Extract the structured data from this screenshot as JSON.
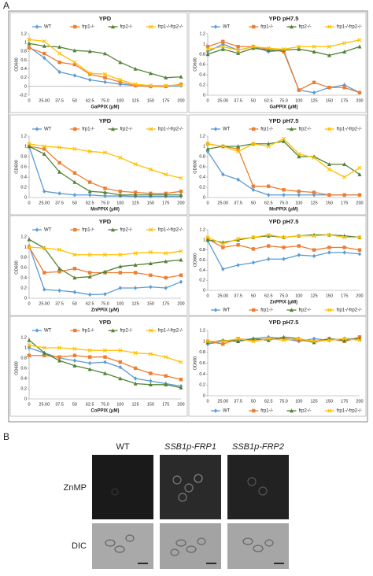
{
  "panel_a_label": "A",
  "chart_data": [
    {
      "type": "line",
      "title": "YPD",
      "xlabel": "GaPPIX (μM)",
      "ylabel": "OD600",
      "legend": "top",
      "categories": [
        "0",
        "25.00",
        "37.5",
        "50",
        "62.5",
        "75.0",
        "100",
        "125",
        "150",
        "175",
        "200"
      ],
      "ylim": [
        -0.2,
        1.2
      ],
      "yticks": [
        -0.2,
        0,
        0.2,
        0.4,
        0.6,
        0.8,
        1,
        1.2
      ],
      "series": [
        {
          "name": "WT",
          "color": "#5b9bd5",
          "marker": "diamond",
          "values": [
            0.9,
            0.65,
            0.33,
            0.25,
            0.15,
            0.1,
            0.05,
            0.02,
            0,
            0,
            0.02
          ]
        },
        {
          "name": "frp1-/-",
          "color": "#ed7d31",
          "marker": "square",
          "values": [
            0.88,
            0.75,
            0.55,
            0.5,
            0.28,
            0.2,
            0.1,
            0.02,
            0,
            0,
            0.05
          ]
        },
        {
          "name": "frp2-/-",
          "color": "#548235",
          "marker": "triangle",
          "values": [
            0.98,
            0.92,
            0.9,
            0.82,
            0.8,
            0.75,
            0.55,
            0.4,
            0.3,
            0.2,
            0.22
          ]
        },
        {
          "name": "frp1-/-frp2-/-",
          "color": "#ffc000",
          "marker": "x",
          "values": [
            1.07,
            1.03,
            0.75,
            0.55,
            0.3,
            0.28,
            0.15,
            0.05,
            0.02,
            0.02,
            0.03
          ]
        }
      ]
    },
    {
      "type": "line",
      "title": "YPD pH7.5",
      "xlabel": "GaPPIX (μM)",
      "ylabel": "OD600",
      "legend": "top",
      "categories": [
        "0",
        "25.00",
        "37.5",
        "50",
        "62.5",
        "75.0",
        "100",
        "125",
        "150",
        "175",
        "200"
      ],
      "ylim": [
        0,
        1.2
      ],
      "yticks": [
        0,
        0.2,
        0.4,
        0.6,
        0.8,
        1,
        1.2
      ],
      "series": [
        {
          "name": "WT",
          "color": "#5b9bd5",
          "marker": "diamond",
          "values": [
            0.85,
            1.0,
            0.88,
            0.95,
            0.85,
            0.88,
            0.1,
            0.05,
            0.15,
            0.2,
            0.05
          ]
        },
        {
          "name": "frp1-/-",
          "color": "#ed7d31",
          "marker": "square",
          "values": [
            0.95,
            1.05,
            0.95,
            0.95,
            0.9,
            0.85,
            0.1,
            0.25,
            0.15,
            0.15,
            0.05
          ]
        },
        {
          "name": "frp2-/-",
          "color": "#548235",
          "marker": "triangle",
          "values": [
            0.8,
            0.9,
            0.82,
            0.92,
            0.88,
            0.88,
            0.9,
            0.85,
            0.78,
            0.85,
            0.95
          ]
        },
        {
          "name": "frp1-/-frp2-/-",
          "color": "#ffc000",
          "marker": "x",
          "values": [
            0.9,
            0.95,
            0.88,
            0.95,
            0.92,
            0.9,
            0.95,
            0.95,
            0.95,
            1.02,
            1.08
          ]
        }
      ]
    },
    {
      "type": "line",
      "title": "YPD",
      "xlabel": "MnPPIX (μM)",
      "ylabel": "OD600",
      "legend": "top",
      "categories": [
        "0",
        "25.00",
        "37.5",
        "50",
        "62.5",
        "75.0",
        "100",
        "125",
        "150",
        "175",
        "200"
      ],
      "ylim": [
        0,
        1.2
      ],
      "yticks": [
        0,
        0.2,
        0.4,
        0.6,
        0.8,
        1,
        1.2
      ],
      "series": [
        {
          "name": "WT",
          "color": "#5b9bd5",
          "marker": "diamond",
          "values": [
            1.0,
            0.12,
            0.08,
            0.05,
            0.05,
            0.03,
            0.03,
            0.02,
            0.02,
            0.02,
            0.02
          ]
        },
        {
          "name": "frp1-/-",
          "color": "#ed7d31",
          "marker": "square",
          "values": [
            1.0,
            0.95,
            0.68,
            0.48,
            0.3,
            0.18,
            0.12,
            0.1,
            0.08,
            0.08,
            0.12
          ]
        },
        {
          "name": "frp2-/-",
          "color": "#548235",
          "marker": "triangle",
          "values": [
            1.0,
            0.85,
            0.5,
            0.3,
            0.12,
            0.1,
            0.05,
            0.05,
            0.05,
            0.05,
            0.05
          ]
        },
        {
          "name": "frp1-/-frp2-/-",
          "color": "#ffc000",
          "marker": "x",
          "values": [
            1.05,
            1.0,
            0.98,
            0.95,
            0.9,
            0.88,
            0.78,
            0.65,
            0.55,
            0.45,
            0.38
          ]
        }
      ]
    },
    {
      "type": "line",
      "title": "YPD pH7.5",
      "xlabel": "MnPPIX (μM)",
      "ylabel": "OD600",
      "legend": "top",
      "categories": [
        "0",
        "25.00",
        "37.5",
        "50",
        "62.5",
        "75.0",
        "100",
        "125",
        "150",
        "175",
        "200"
      ],
      "ylim": [
        0,
        1.2
      ],
      "yticks": [
        0,
        0.2,
        0.4,
        0.6,
        0.8,
        1,
        1.2
      ],
      "series": [
        {
          "name": "WT",
          "color": "#5b9bd5",
          "marker": "diamond",
          "values": [
            0.9,
            0.45,
            0.35,
            0.15,
            0.05,
            0.05,
            0.05,
            0.05,
            0.05,
            0.05,
            0.05
          ]
        },
        {
          "name": "frp1-/-",
          "color": "#ed7d31",
          "marker": "square",
          "values": [
            1.05,
            1.0,
            0.95,
            0.22,
            0.22,
            0.15,
            0.12,
            0.1,
            0.05,
            0.05,
            0.05
          ]
        },
        {
          "name": "frp2-/-",
          "color": "#548235",
          "marker": "triangle",
          "values": [
            0.95,
            1.0,
            1.0,
            1.05,
            1.05,
            1.1,
            0.8,
            0.8,
            0.65,
            0.65,
            0.45
          ]
        },
        {
          "name": "frp1-/-frp2-/-",
          "color": "#ffc000",
          "marker": "x",
          "values": [
            1.05,
            1.0,
            0.9,
            1.05,
            1.0,
            1.15,
            0.85,
            0.78,
            0.55,
            0.4,
            0.58
          ]
        }
      ]
    },
    {
      "type": "line",
      "title": "YPD",
      "xlabel": "ZnPPIX (μM)",
      "ylabel": "OD600",
      "legend": "top",
      "categories": [
        "0",
        "25.00",
        "37.5",
        "50",
        "62.5",
        "75.0",
        "100",
        "125",
        "150",
        "175",
        "200"
      ],
      "ylim": [
        0,
        1.2
      ],
      "yticks": [
        0,
        0.2,
        0.4,
        0.6,
        0.8,
        1,
        1.2
      ],
      "series": [
        {
          "name": "WT",
          "color": "#5b9bd5",
          "marker": "diamond",
          "values": [
            1.02,
            0.17,
            0.15,
            0.12,
            0.07,
            0.08,
            0.2,
            0.2,
            0.22,
            0.2,
            0.32
          ]
        },
        {
          "name": "frp1-/-",
          "color": "#ed7d31",
          "marker": "square",
          "values": [
            1.0,
            0.5,
            0.52,
            0.58,
            0.5,
            0.5,
            0.5,
            0.5,
            0.45,
            0.4,
            0.45
          ]
        },
        {
          "name": "frp2-/-",
          "color": "#548235",
          "marker": "triangle",
          "values": [
            1.15,
            0.98,
            0.58,
            0.4,
            0.42,
            0.52,
            0.62,
            0.65,
            0.68,
            0.72,
            0.75
          ]
        },
        {
          "name": "frp1-/-frp2-/-",
          "color": "#ffc000",
          "marker": "x",
          "values": [
            1.0,
            0.98,
            0.95,
            0.85,
            0.85,
            0.85,
            0.85,
            0.88,
            0.9,
            0.88,
            0.92
          ]
        }
      ]
    },
    {
      "type": "line",
      "title": "YPD pH7.5",
      "xlabel": "ZnPPIX (μM)",
      "ylabel": "OD600",
      "legend": "bottom",
      "categories": [
        "0",
        "25.00",
        "37.5",
        "50",
        "62.5",
        "75.0",
        "100",
        "125",
        "150",
        "175",
        "200"
      ],
      "ylim": [
        0,
        1.2
      ],
      "yticks": [
        0,
        0.2,
        0.4,
        0.6,
        0.8,
        1,
        1.2
      ],
      "series": [
        {
          "name": "WT",
          "color": "#5b9bd5",
          "marker": "diamond",
          "values": [
            0.98,
            0.42,
            0.5,
            0.55,
            0.62,
            0.62,
            0.7,
            0.68,
            0.75,
            0.75,
            0.72
          ]
        },
        {
          "name": "frp1-/-",
          "color": "#ed7d31",
          "marker": "square",
          "values": [
            1.02,
            0.85,
            0.9,
            0.82,
            0.88,
            0.85,
            0.88,
            0.8,
            0.85,
            0.85,
            0.8
          ]
        },
        {
          "name": "frp2-/-",
          "color": "#548235",
          "marker": "triangle",
          "values": [
            1.0,
            0.95,
            1.0,
            1.05,
            1.08,
            1.05,
            1.08,
            1.1,
            1.1,
            1.08,
            1.05
          ]
        },
        {
          "name": "frp1-/-frp2-/-",
          "color": "#ffc000",
          "marker": "x",
          "values": [
            1.05,
            0.92,
            1.02,
            1.05,
            1.1,
            1.05,
            1.08,
            1.08,
            1.1,
            1.05,
            1.05
          ]
        }
      ]
    },
    {
      "type": "line",
      "title": "YPD",
      "xlabel": "CoPPIX (μM)",
      "ylabel": "OD600",
      "legend": "top",
      "categories": [
        "0",
        "25.00",
        "37.5",
        "50",
        "62.5",
        "75.0",
        "100",
        "125",
        "150",
        "175",
        "200"
      ],
      "ylim": [
        0,
        1.2
      ],
      "yticks": [
        0,
        0.2,
        0.4,
        0.6,
        0.8,
        1,
        1.2
      ],
      "series": [
        {
          "name": "WT",
          "color": "#5b9bd5",
          "marker": "diamond",
          "values": [
            1.0,
            0.9,
            0.8,
            0.75,
            0.7,
            0.72,
            0.62,
            0.4,
            0.35,
            0.3,
            0.25
          ]
        },
        {
          "name": "frp1-/-",
          "color": "#ed7d31",
          "marker": "square",
          "values": [
            0.85,
            0.85,
            0.82,
            0.85,
            0.82,
            0.82,
            0.72,
            0.6,
            0.5,
            0.45,
            0.38
          ]
        },
        {
          "name": "frp2-/-",
          "color": "#548235",
          "marker": "triangle",
          "values": [
            1.15,
            0.9,
            0.75,
            0.65,
            0.58,
            0.5,
            0.4,
            0.3,
            0.28,
            0.28,
            0.22
          ]
        },
        {
          "name": "frp1-/-frp2-/-",
          "color": "#ffc000",
          "marker": "x",
          "values": [
            1.05,
            1.0,
            1.0,
            0.98,
            0.95,
            0.95,
            0.95,
            0.9,
            0.88,
            0.82,
            0.72
          ]
        }
      ]
    },
    {
      "type": "line",
      "title": "YPD pH7.5",
      "ylabel": "OD600",
      "legend": "bottom",
      "categories": [
        "0",
        "25.00",
        "37.5",
        "50",
        "62.5",
        "75.0",
        "100",
        "125",
        "150",
        "175",
        "200"
      ],
      "ylim": [
        0,
        1.2
      ],
      "yticks": [
        0,
        0.2,
        0.4,
        0.6,
        0.8,
        1,
        1.2
      ],
      "series": [
        {
          "name": "WT",
          "color": "#5b9bd5",
          "marker": "diamond",
          "values": [
            0.95,
            1.0,
            1.02,
            1.05,
            1.08,
            1.05,
            1.0,
            1.05,
            1.02,
            1.05,
            1.05
          ]
        },
        {
          "name": "frp1-/-",
          "color": "#ed7d31",
          "marker": "square",
          "values": [
            1.0,
            0.95,
            1.05,
            1.02,
            1.05,
            1.05,
            1.02,
            1.0,
            1.05,
            1.0,
            1.08
          ]
        },
        {
          "name": "frp2-/-",
          "color": "#548235",
          "marker": "triangle",
          "values": [
            0.98,
            1.02,
            1.0,
            1.05,
            1.02,
            1.08,
            1.05,
            0.98,
            1.05,
            1.02,
            1.05
          ]
        },
        {
          "name": "frp1-/-frp2-/-",
          "color": "#ffc000",
          "marker": "x",
          "values": [
            1.0,
            1.0,
            1.05,
            1.0,
            1.05,
            1.02,
            1.05,
            1.0,
            1.02,
            1.05,
            1.02
          ]
        }
      ]
    }
  ],
  "panel_b": {
    "label": "B",
    "columns": [
      "WT",
      "SSB1p-FRP1",
      "SSB1p-FRP2"
    ],
    "rows": [
      "ZnMP",
      "DIC"
    ]
  }
}
